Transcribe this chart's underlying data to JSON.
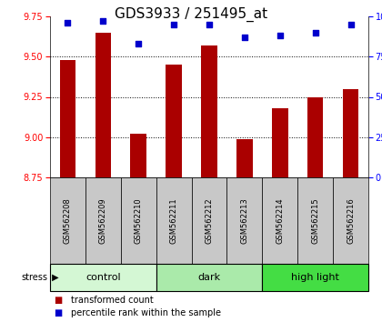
{
  "title": "GDS3933 / 251495_at",
  "samples": [
    "GSM562208",
    "GSM562209",
    "GSM562210",
    "GSM562211",
    "GSM562212",
    "GSM562213",
    "GSM562214",
    "GSM562215",
    "GSM562216"
  ],
  "red_values": [
    9.48,
    9.65,
    9.02,
    9.45,
    9.57,
    8.99,
    9.18,
    9.25,
    9.3
  ],
  "blue_values": [
    96,
    97,
    83,
    95,
    95,
    87,
    88,
    90,
    95
  ],
  "ylim": [
    8.75,
    9.75
  ],
  "yticks": [
    8.75,
    9.0,
    9.25,
    9.5,
    9.75
  ],
  "right_yticks": [
    0,
    25,
    50,
    75,
    100
  ],
  "groups": [
    {
      "label": "control",
      "start": 0,
      "end": 3,
      "color": "#d4f7d4"
    },
    {
      "label": "dark",
      "start": 3,
      "end": 6,
      "color": "#aaeaaa"
    },
    {
      "label": "high light",
      "start": 6,
      "end": 9,
      "color": "#44dd44"
    }
  ],
  "bar_color": "#aa0000",
  "dot_color": "#0000cc",
  "bar_width": 0.45,
  "bg_label_row": "#c8c8c8",
  "title_fontsize": 11,
  "axis_fontsize": 7,
  "label_fontsize": 6,
  "group_fontsize": 8,
  "legend_fontsize": 7
}
